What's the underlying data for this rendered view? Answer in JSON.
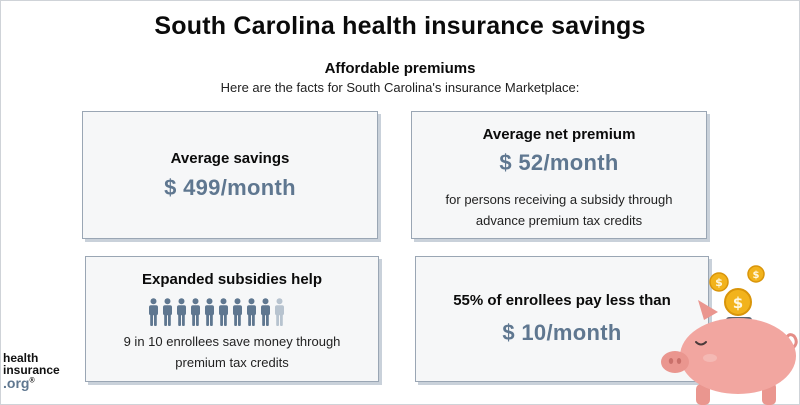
{
  "header": {
    "title": "South Carolina health insurance savings",
    "subtitle": "Affordable premiums",
    "intro": "Here are the facts for South Carolina's insurance Marketplace:"
  },
  "cards": {
    "average_savings": {
      "heading": "Average savings",
      "value": "$ 499/month"
    },
    "average_net_premium": {
      "heading": "Average net premium",
      "value": "$ 52/month",
      "note_line1": "for persons receiving a subsidy through",
      "note_line2": "advance premium tax credits"
    },
    "expanded_subsidies": {
      "heading": "Expanded subsidies help",
      "people_total": 10,
      "people_highlighted": 9,
      "note_line1": "9 in 10 enrollees save money through",
      "note_line2": "premium tax credits"
    },
    "pay_less": {
      "heading": "55% of enrollees pay less than",
      "value": "$ 10/month"
    }
  },
  "logo": {
    "line1": "health",
    "line2": "insurance",
    "line3": ".org",
    "trademark": "®"
  },
  "colors": {
    "accent_value": "#5f7790",
    "person_highlight": "#5f7790",
    "person_muted": "#b7c3cf",
    "card_border": "#9aa6b4",
    "pig_body": "#f2a6a0",
    "coin": "#f2b31c"
  },
  "icons": {
    "people": "person-icon",
    "illustration": "piggy-bank-with-coins"
  }
}
